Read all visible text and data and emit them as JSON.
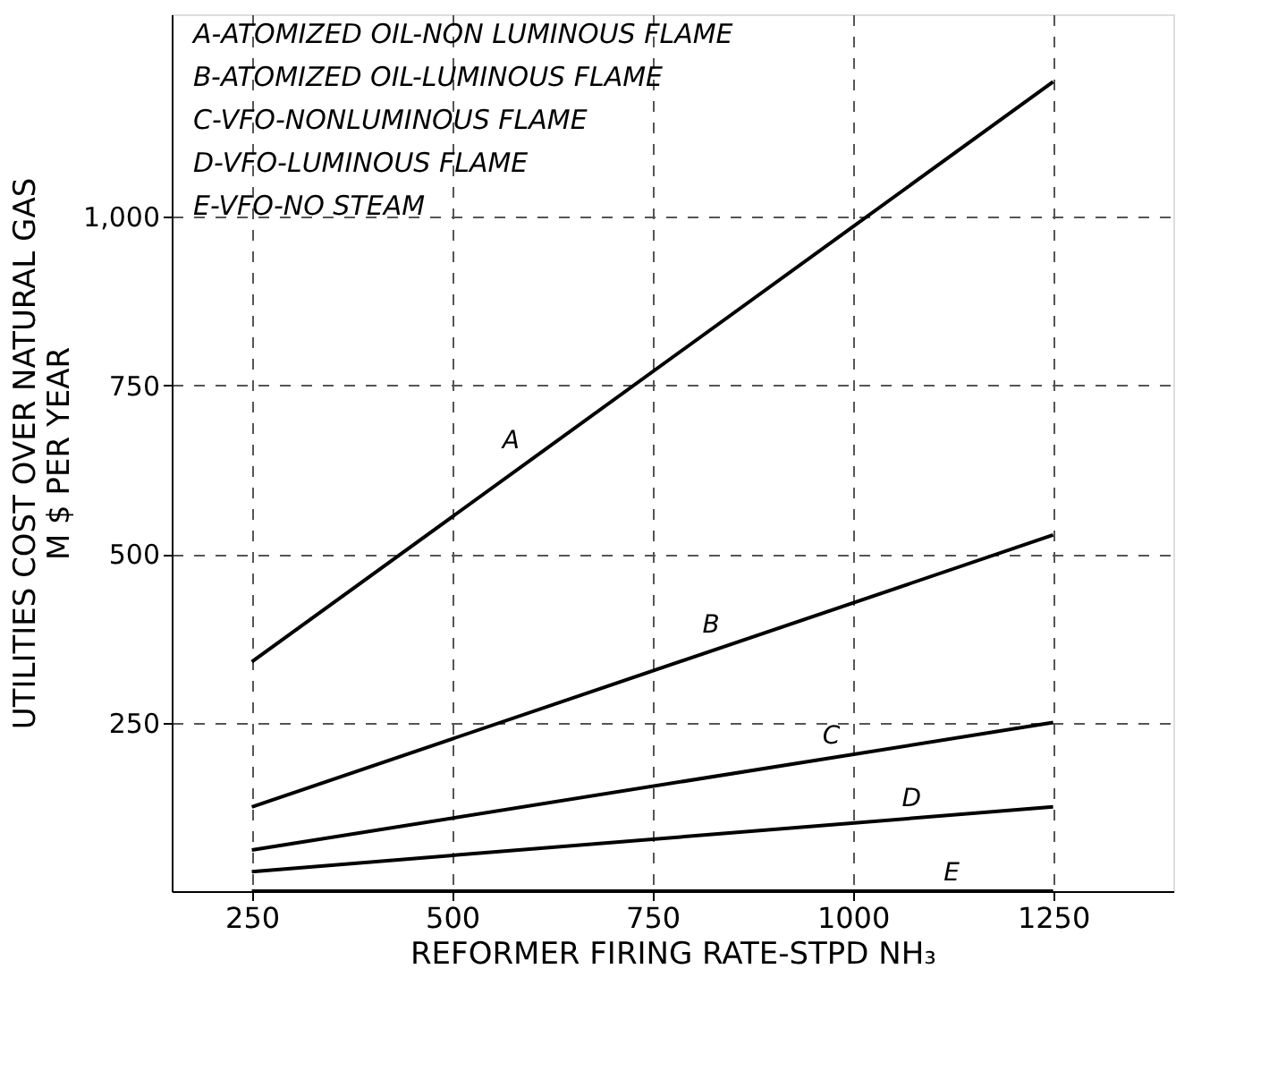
{
  "chart_data": {
    "type": "line",
    "x": [
      250,
      1250
    ],
    "series": [
      {
        "name": "A",
        "color": "#000000",
        "values": [
          340,
          1200
        ]
      },
      {
        "name": "B",
        "color": "#000000",
        "values": [
          125,
          528
        ]
      },
      {
        "name": "C",
        "color": "#000000",
        "values": [
          61,
          250
        ]
      },
      {
        "name": "D",
        "color": "#000000",
        "values": [
          29,
          125
        ]
      },
      {
        "name": "E",
        "color": "#000000",
        "values": [
          0,
          0
        ]
      }
    ],
    "xlabel": "REFORMER FIRING RATE-STPD NH₃",
    "ylabel": [
      "UTILITIES COST OVER NATURAL GAS",
      "M $ PER YEAR"
    ],
    "annotations": [
      "A-ATOMIZED OIL-NON LUMINOUS FLAME",
      "B-ATOMIZED OIL-LUMINOUS FLAME",
      "C-VFO-NONLUMINOUS FLAME",
      "D-VFO-LUMINOUS FLAME",
      "E-VFO-NO STEAM"
    ],
    "xlim": [
      150,
      1400
    ],
    "ylim": [
      0,
      1300
    ],
    "xticks": [
      250,
      500,
      750,
      1000,
      1250
    ],
    "yticks": [
      250,
      500,
      750,
      {
        "value": 1000,
        "label": "1,000"
      }
    ],
    "grid": true,
    "legend": false,
    "marker": "none",
    "line_style": "solid"
  }
}
